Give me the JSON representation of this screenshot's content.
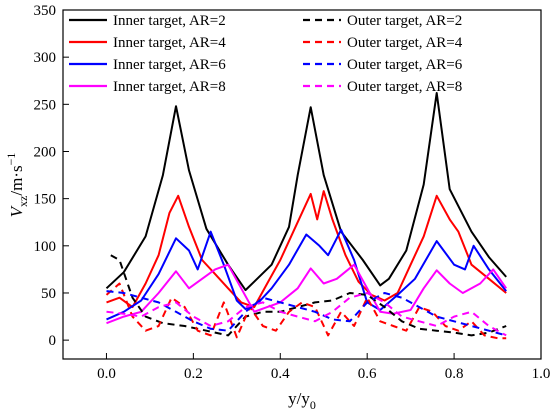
{
  "chart_data": {
    "type": "line",
    "xlabel": "y/y0",
    "ylabel": "Vxz/m·s−1",
    "xlim": [
      -0.1,
      1.0
    ],
    "ylim": [
      -20,
      350
    ],
    "xticks": [
      "0.0",
      "0.2",
      "0.4",
      "0.6",
      "0.8",
      "1.0"
    ],
    "xtick_values": [
      0.0,
      0.2,
      0.4,
      0.6,
      0.8,
      1.0
    ],
    "yticks": [
      "0",
      "50",
      "100",
      "150",
      "200",
      "250",
      "300",
      "350"
    ],
    "ytick_values": [
      0,
      50,
      100,
      150,
      200,
      250,
      300,
      350
    ],
    "legend_placement": "top",
    "series": [
      {
        "name": "Inner target, AR=2",
        "color": "#000000",
        "dash": "solid",
        "x": [
          0.0,
          0.04,
          0.09,
          0.13,
          0.16,
          0.19,
          0.23,
          0.28,
          0.32,
          0.34,
          0.38,
          0.42,
          0.44,
          0.47,
          0.5,
          0.54,
          0.59,
          0.63,
          0.65,
          0.69,
          0.73,
          0.76,
          0.79,
          0.84,
          0.88,
          0.92
        ],
        "y": [
          55,
          72,
          110,
          175,
          248,
          180,
          118,
          80,
          53,
          62,
          80,
          120,
          175,
          247,
          175,
          115,
          85,
          58,
          65,
          95,
          165,
          262,
          160,
          115,
          88,
          67
        ]
      },
      {
        "name": "Inner target, AR=4",
        "color": "#ff0000",
        "dash": "solid",
        "x": [
          0.0,
          0.03,
          0.06,
          0.09,
          0.12,
          0.145,
          0.165,
          0.19,
          0.22,
          0.25,
          0.28,
          0.31,
          0.34,
          0.37,
          0.4,
          0.43,
          0.47,
          0.485,
          0.5,
          0.52,
          0.55,
          0.58,
          0.61,
          0.64,
          0.67,
          0.7,
          0.73,
          0.76,
          0.79,
          0.81,
          0.84,
          0.88,
          0.92
        ],
        "y": [
          40,
          45,
          35,
          60,
          90,
          135,
          153,
          120,
          85,
          70,
          55,
          40,
          35,
          60,
          85,
          115,
          155,
          128,
          158,
          128,
          90,
          62,
          48,
          42,
          50,
          80,
          110,
          153,
          128,
          115,
          80,
          65,
          50
        ]
      },
      {
        "name": "Inner target, AR=6",
        "color": "#0000ff",
        "dash": "solid",
        "x": [
          0.0,
          0.04,
          0.08,
          0.12,
          0.16,
          0.19,
          0.21,
          0.24,
          0.27,
          0.3,
          0.32,
          0.35,
          0.38,
          0.42,
          0.46,
          0.49,
          0.51,
          0.54,
          0.57,
          0.6,
          0.63,
          0.67,
          0.71,
          0.76,
          0.8,
          0.825,
          0.845,
          0.88,
          0.92
        ],
        "y": [
          22,
          30,
          42,
          70,
          108,
          95,
          75,
          115,
          80,
          42,
          33,
          40,
          55,
          80,
          112,
          100,
          90,
          117,
          85,
          40,
          32,
          48,
          65,
          105,
          80,
          75,
          100,
          75,
          52
        ]
      },
      {
        "name": "Inner target, AR=8",
        "color": "#ff00ff",
        "dash": "solid",
        "x": [
          0.0,
          0.04,
          0.08,
          0.12,
          0.16,
          0.19,
          0.22,
          0.25,
          0.28,
          0.31,
          0.34,
          0.37,
          0.4,
          0.44,
          0.47,
          0.5,
          0.53,
          0.57,
          0.6,
          0.63,
          0.66,
          0.7,
          0.73,
          0.76,
          0.79,
          0.82,
          0.86,
          0.89,
          0.92
        ],
        "y": [
          18,
          25,
          30,
          50,
          73,
          55,
          65,
          75,
          80,
          55,
          30,
          35,
          40,
          55,
          76,
          60,
          65,
          80,
          55,
          30,
          28,
          32,
          55,
          74,
          60,
          50,
          60,
          75,
          55
        ]
      },
      {
        "name": "Outer target, AR=2",
        "color": "#000000",
        "dash": "dashed",
        "x": [
          0.01,
          0.03,
          0.06,
          0.09,
          0.13,
          0.18,
          0.23,
          0.28,
          0.32,
          0.36,
          0.4,
          0.44,
          0.48,
          0.52,
          0.56,
          0.6,
          0.64,
          0.68,
          0.72,
          0.76,
          0.8,
          0.84,
          0.88,
          0.92
        ],
        "y": [
          90,
          85,
          45,
          25,
          18,
          15,
          10,
          5,
          25,
          30,
          30,
          35,
          40,
          42,
          50,
          48,
          35,
          20,
          12,
          10,
          8,
          5,
          8,
          15
        ]
      },
      {
        "name": "Outer target, AR=4",
        "color": "#ff0000",
        "dash": "dashed",
        "x": [
          0.0,
          0.03,
          0.06,
          0.09,
          0.12,
          0.15,
          0.18,
          0.21,
          0.24,
          0.27,
          0.3,
          0.33,
          0.36,
          0.39,
          0.42,
          0.45,
          0.48,
          0.51,
          0.54,
          0.57,
          0.6,
          0.63,
          0.66,
          0.69,
          0.72,
          0.75,
          0.78,
          0.81,
          0.84,
          0.87,
          0.9,
          0.92
        ],
        "y": [
          48,
          60,
          25,
          10,
          15,
          45,
          35,
          10,
          5,
          40,
          3,
          35,
          15,
          10,
          30,
          40,
          35,
          5,
          30,
          15,
          45,
          20,
          15,
          10,
          35,
          30,
          15,
          10,
          20,
          5,
          2,
          2
        ]
      },
      {
        "name": "Outer target, AR=6",
        "color": "#0000ff",
        "dash": "dashed",
        "x": [
          0.0,
          0.04,
          0.08,
          0.12,
          0.16,
          0.2,
          0.24,
          0.28,
          0.32,
          0.36,
          0.4,
          0.44,
          0.48,
          0.52,
          0.56,
          0.6,
          0.64,
          0.68,
          0.72,
          0.76,
          0.8,
          0.84,
          0.88,
          0.92
        ],
        "y": [
          52,
          50,
          45,
          40,
          30,
          20,
          12,
          10,
          30,
          45,
          40,
          35,
          30,
          22,
          20,
          40,
          50,
          45,
          35,
          25,
          20,
          15,
          10,
          5
        ]
      },
      {
        "name": "Outer target, AR=8",
        "color": "#ff00ff",
        "dash": "dashed",
        "x": [
          0.0,
          0.04,
          0.08,
          0.12,
          0.16,
          0.2,
          0.24,
          0.28,
          0.32,
          0.36,
          0.4,
          0.44,
          0.48,
          0.52,
          0.56,
          0.6,
          0.64,
          0.68,
          0.72,
          0.76,
          0.8,
          0.84,
          0.88,
          0.92
        ],
        "y": [
          30,
          28,
          25,
          35,
          40,
          25,
          15,
          20,
          35,
          40,
          30,
          25,
          20,
          30,
          45,
          50,
          40,
          25,
          20,
          15,
          25,
          30,
          15,
          5
        ]
      }
    ]
  }
}
